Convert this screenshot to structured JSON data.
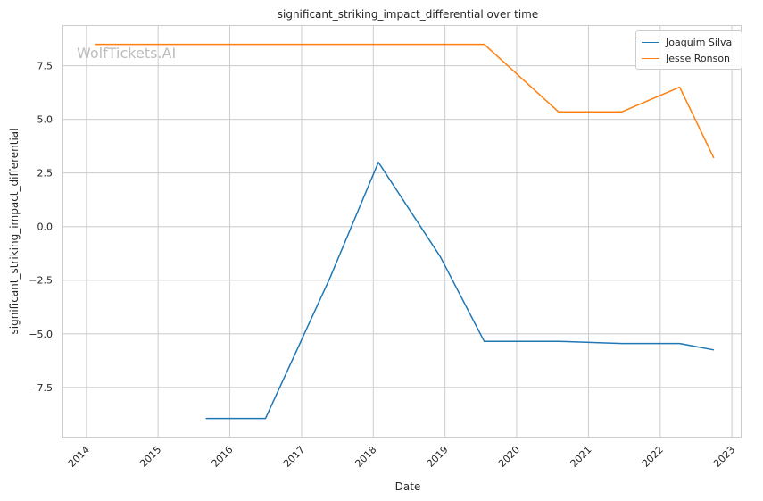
{
  "chart_data": {
    "type": "line",
    "title": "significant_striking_impact_differential over time",
    "xlabel": "Date",
    "ylabel": "significant_striking_impact_differential",
    "watermark": "WolfTickets.AI",
    "x_ticks": [
      "2014",
      "2015",
      "2016",
      "2017",
      "2018",
      "2019",
      "2020",
      "2021",
      "2022",
      "2023"
    ],
    "y_ticks": [
      "−7.5",
      "−5.0",
      "−2.5",
      "0.0",
      "2.5",
      "5.0",
      "7.5"
    ],
    "y_tick_values": [
      -7.5,
      -5.0,
      -2.5,
      0.0,
      2.5,
      5.0,
      7.5
    ],
    "xlim": [
      "2013-09-01",
      "2023-02-15"
    ],
    "ylim": [
      -9.8,
      9.4
    ],
    "grid": true,
    "legend_position": "top-right",
    "series": [
      {
        "name": "Joaquim Silva",
        "color": "#1f77b4",
        "points": [
          {
            "x": "2015-09-01",
            "y": -8.95
          },
          {
            "x": "2016-07-01",
            "y": -8.95
          },
          {
            "x": "2017-05-25",
            "y": -2.4
          },
          {
            "x": "2018-01-27",
            "y": 3.0
          },
          {
            "x": "2018-12-08",
            "y": -1.4
          },
          {
            "x": "2019-07-20",
            "y": -5.35
          },
          {
            "x": "2020-08-01",
            "y": -5.35
          },
          {
            "x": "2021-06-20",
            "y": -5.45
          },
          {
            "x": "2022-04-10",
            "y": -5.45
          },
          {
            "x": "2022-10-01",
            "y": -5.75
          }
        ]
      },
      {
        "name": "Jesse Ronson",
        "color": "#ff7f0e",
        "points": [
          {
            "x": "2014-02-15",
            "y": 8.5
          },
          {
            "x": "2019-07-20",
            "y": 8.5
          },
          {
            "x": "2020-08-01",
            "y": 5.35
          },
          {
            "x": "2021-06-20",
            "y": 5.35
          },
          {
            "x": "2022-04-10",
            "y": 6.5
          },
          {
            "x": "2022-10-01",
            "y": 3.2
          }
        ]
      }
    ]
  }
}
